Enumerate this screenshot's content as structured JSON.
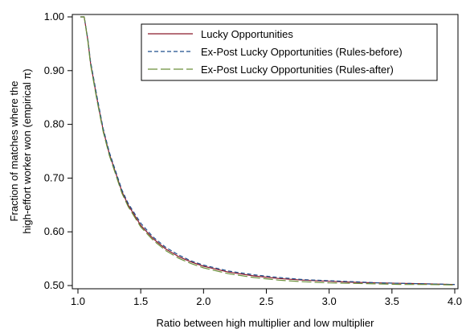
{
  "chart_data": {
    "type": "line",
    "xlabel": "Ratio between high multiplier and low multiplier",
    "ylabel_line1": "Fraction of matches where the",
    "ylabel_line2": "high-effort worker won (empirical π)",
    "xlim": [
      1.0,
      4.0
    ],
    "ylim": [
      0.5,
      1.0
    ],
    "xticks": [
      "1.0",
      "1.5",
      "2.0",
      "2.5",
      "3.0",
      "3.5",
      "4.0"
    ],
    "yticks": [
      "0.50",
      "0.60",
      "0.70",
      "0.80",
      "0.90",
      "1.00"
    ],
    "grid": false,
    "legend_position": "top-right",
    "x": [
      1.02,
      1.05,
      1.08,
      1.1,
      1.15,
      1.2,
      1.25,
      1.3,
      1.35,
      1.4,
      1.5,
      1.6,
      1.7,
      1.8,
      1.9,
      2.0,
      2.2,
      2.4,
      2.6,
      2.8,
      3.0,
      3.2,
      3.4,
      3.6,
      3.8,
      4.0
    ],
    "series": [
      {
        "name": "Lucky Opportunities",
        "color": "#8b1a2b",
        "dash": "solid",
        "values": [
          1.0,
          1.0,
          0.955,
          0.915,
          0.85,
          0.79,
          0.745,
          0.71,
          0.675,
          0.65,
          0.612,
          0.587,
          0.568,
          0.554,
          0.544,
          0.536,
          0.525,
          0.518,
          0.513,
          0.51,
          0.508,
          0.506,
          0.505,
          0.504,
          0.503,
          0.502
        ]
      },
      {
        "name": "Ex-Post Lucky Opportunities (Rules-before)",
        "color": "#1f4e8c",
        "dash": "short",
        "values": [
          1.0,
          1.0,
          0.957,
          0.918,
          0.854,
          0.793,
          0.748,
          0.713,
          0.678,
          0.653,
          0.616,
          0.59,
          0.571,
          0.557,
          0.546,
          0.538,
          0.527,
          0.52,
          0.515,
          0.511,
          0.509,
          0.507,
          0.505,
          0.504,
          0.503,
          0.502
        ]
      },
      {
        "name": "Ex-Post Lucky Opportunities (Rules-after)",
        "color": "#6a8f3a",
        "dash": "long",
        "values": [
          1.0,
          1.0,
          0.953,
          0.912,
          0.847,
          0.787,
          0.742,
          0.707,
          0.672,
          0.647,
          0.609,
          0.584,
          0.565,
          0.551,
          0.541,
          0.533,
          0.522,
          0.515,
          0.51,
          0.507,
          0.505,
          0.504,
          0.503,
          0.502,
          0.502,
          0.501
        ]
      }
    ]
  }
}
